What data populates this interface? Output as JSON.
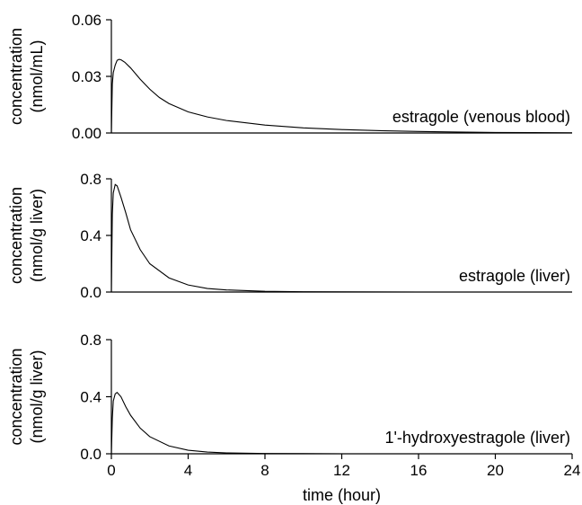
{
  "chart_data": [
    {
      "type": "line",
      "ylabel_line1": "concentration",
      "ylabel_line2": "(nmol/mL)",
      "ylim": [
        0,
        0.06
      ],
      "yticks": [
        0,
        0.03,
        0.06
      ],
      "yticklabels": [
        "0.00",
        "0.03",
        "0.06"
      ],
      "xlim": [
        0,
        24
      ],
      "series": [
        {
          "name": "estragole (venous blood)",
          "x": [
            0,
            0.05,
            0.1,
            0.2,
            0.3,
            0.4,
            0.5,
            0.7,
            1.0,
            1.5,
            2.0,
            2.5,
            3.0,
            4.0,
            5.0,
            6.0,
            8.0,
            10.0,
            12.0,
            14.0,
            16.0,
            18.0,
            20.0,
            22.0,
            24.0
          ],
          "y": [
            0,
            0.026,
            0.032,
            0.036,
            0.0385,
            0.039,
            0.0388,
            0.0375,
            0.0345,
            0.0285,
            0.0232,
            0.0188,
            0.0156,
            0.0112,
            0.0085,
            0.0066,
            0.0042,
            0.0027,
            0.0018,
            0.0012,
            0.0008,
            0.0005,
            0.0003,
            0.0002,
            0.0001
          ]
        }
      ]
    },
    {
      "type": "line",
      "ylabel_line1": "concentration",
      "ylabel_line2": "(nmol/g liver)",
      "ylim": [
        0,
        0.8
      ],
      "yticks": [
        0,
        0.4,
        0.8
      ],
      "yticklabels": [
        "0.0",
        "0.4",
        "0.8"
      ],
      "xlim": [
        0,
        24
      ],
      "series": [
        {
          "name": "estragole (liver)",
          "x": [
            0,
            0.05,
            0.1,
            0.2,
            0.3,
            0.5,
            0.75,
            1.0,
            1.5,
            2.0,
            3.0,
            4.0,
            5.0,
            6.0,
            8.0,
            10.0,
            12.0,
            16.0,
            21.3
          ],
          "y": [
            0,
            0.55,
            0.7,
            0.76,
            0.75,
            0.67,
            0.56,
            0.44,
            0.3,
            0.2,
            0.1,
            0.05,
            0.025,
            0.015,
            0.005,
            0.002,
            0.001,
            0.0,
            0.0
          ]
        }
      ]
    },
    {
      "type": "line",
      "ylabel_line1": "concentration",
      "ylabel_line2": "(nmol/g liver)",
      "ylim": [
        0,
        0.8
      ],
      "yticks": [
        0,
        0.4,
        0.8
      ],
      "yticklabels": [
        "0.0",
        "0.4",
        "0.8"
      ],
      "xlim": [
        0,
        24
      ],
      "xticks": [
        0,
        4,
        8,
        12,
        16,
        20,
        24
      ],
      "xticklabels": [
        "0",
        "4",
        "8",
        "12",
        "16",
        "20",
        "24"
      ],
      "xlabel": "time (hour)",
      "series": [
        {
          "name": "1'-hydroxyestragole (liver)",
          "x": [
            0,
            0.05,
            0.1,
            0.2,
            0.3,
            0.5,
            0.75,
            1.0,
            1.5,
            2.0,
            3.0,
            4.0,
            5.0,
            6.0,
            8.0,
            10.0,
            12.0,
            16.0,
            24.0
          ],
          "y": [
            0,
            0.25,
            0.37,
            0.42,
            0.43,
            0.4,
            0.33,
            0.27,
            0.18,
            0.12,
            0.055,
            0.025,
            0.012,
            0.006,
            0.002,
            0.001,
            0.0,
            0.0,
            0.0
          ]
        }
      ]
    }
  ]
}
